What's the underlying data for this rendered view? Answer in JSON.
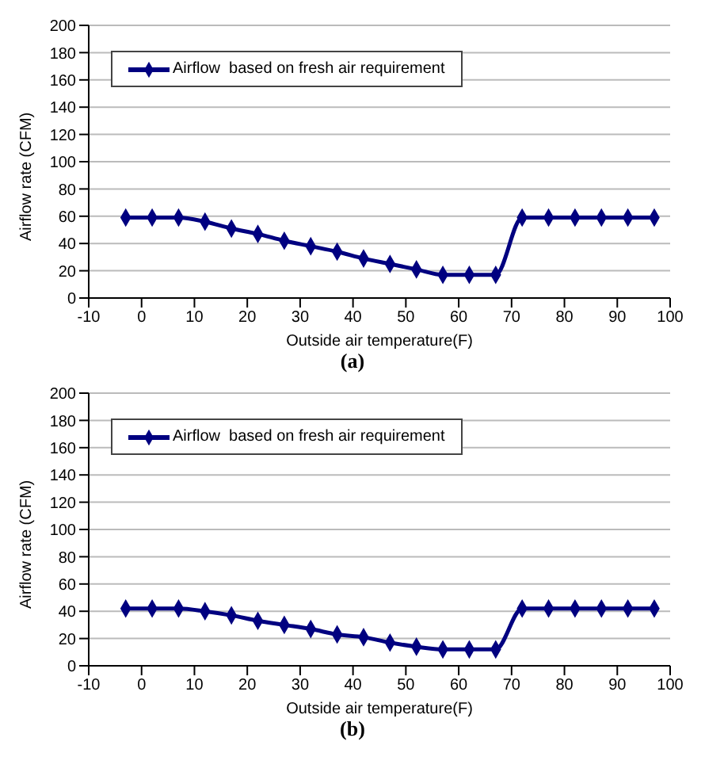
{
  "chart_data": [
    {
      "type": "line",
      "title": "(a)",
      "xlabel": "Outside air temperature(F)",
      "ylabel": "Airflow rate (CFM)",
      "x": [
        -3,
        2,
        7,
        12,
        17,
        22,
        27,
        32,
        37,
        42,
        47,
        52,
        57,
        62,
        67,
        72,
        77,
        82,
        87,
        92,
        97
      ],
      "series": [
        {
          "name": "Airflow  based on fresh air requirement",
          "color": "#000080",
          "values": [
            59,
            59,
            59,
            56,
            51,
            47,
            42,
            38,
            34,
            29,
            25,
            21,
            17,
            17,
            17,
            59,
            59,
            59,
            59,
            59,
            59
          ]
        }
      ],
      "xlim": [
        -10,
        100
      ],
      "xticks": [
        -10,
        0,
        10,
        20,
        30,
        40,
        50,
        60,
        70,
        80,
        90,
        100
      ],
      "ylim": [
        0,
        200
      ],
      "yticks": [
        0,
        20,
        40,
        60,
        80,
        100,
        120,
        140,
        160,
        180,
        200
      ],
      "grid": "y",
      "legend": "top left",
      "marker": "diamond",
      "line_style": "solid"
    },
    {
      "type": "line",
      "title": "(b)",
      "xlabel": "Outside air temperature(F)",
      "ylabel": "Airflow rate (CFM)",
      "x": [
        -3,
        2,
        7,
        12,
        17,
        22,
        27,
        32,
        37,
        42,
        47,
        52,
        57,
        62,
        67,
        72,
        77,
        82,
        87,
        92,
        97
      ],
      "series": [
        {
          "name": "Airflow  based on fresh air requirement",
          "color": "#000080",
          "values": [
            42,
            42,
            42,
            40,
            37,
            33,
            30,
            27,
            23,
            21,
            17,
            14,
            12,
            12,
            12,
            42,
            42,
            42,
            42,
            42,
            42
          ]
        }
      ],
      "xlim": [
        -10,
        100
      ],
      "xticks": [
        -10,
        0,
        10,
        20,
        30,
        40,
        50,
        60,
        70,
        80,
        90,
        100
      ],
      "ylim": [
        0,
        200
      ],
      "yticks": [
        0,
        20,
        40,
        60,
        80,
        100,
        120,
        140,
        160,
        180,
        200
      ],
      "grid": "y",
      "legend": "top left",
      "marker": "diamond",
      "line_style": "solid"
    }
  ]
}
